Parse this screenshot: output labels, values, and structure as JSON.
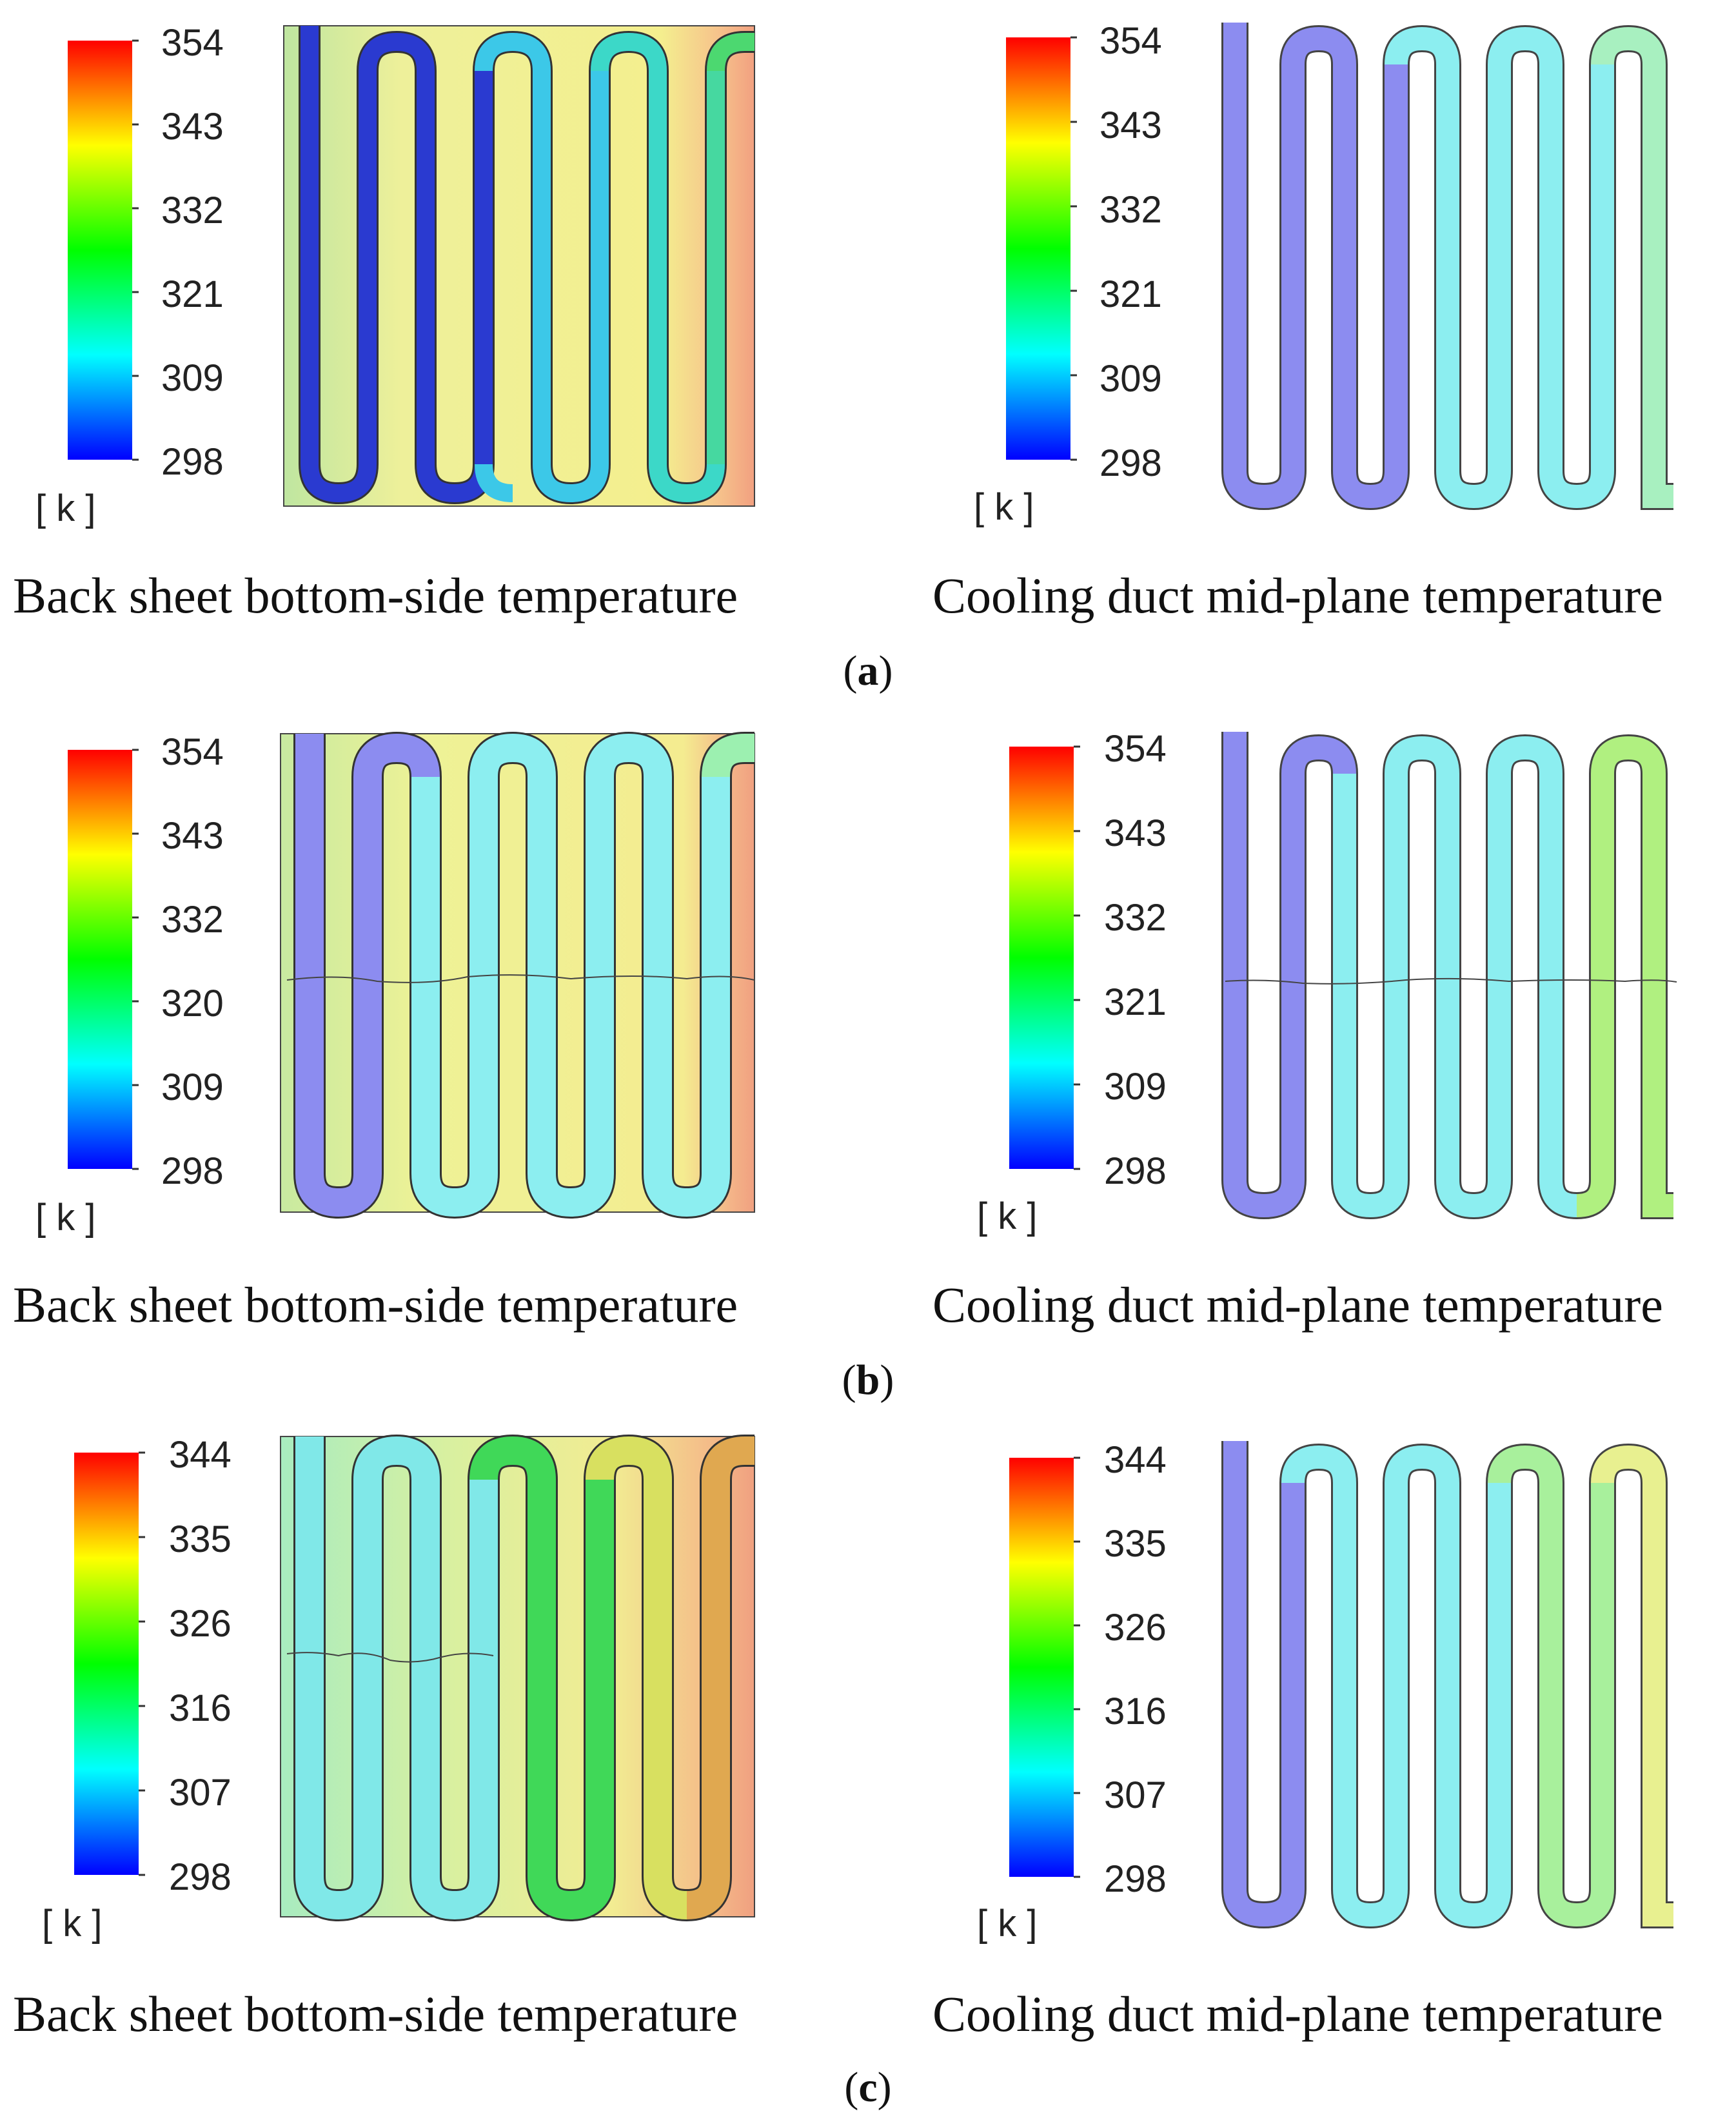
{
  "panels": [
    {
      "label": "a",
      "back_sheet": {
        "caption": "Back sheet bottom-side temperature",
        "scale": [
          "354",
          "343",
          "332",
          "321",
          "309",
          "298"
        ],
        "unit": "[ k ]"
      },
      "cooling_duct": {
        "caption": "Cooling duct mid-plane temperature",
        "scale": [
          "354",
          "343",
          "332",
          "321",
          "309",
          "298"
        ],
        "unit": "[ k ]"
      }
    },
    {
      "label": "b",
      "back_sheet": {
        "caption": "Back sheet bottom-side temperature",
        "scale": [
          "354",
          "343",
          "332",
          "320",
          "309",
          "298"
        ],
        "unit": "[ k ]"
      },
      "cooling_duct": {
        "caption": "Cooling duct mid-plane temperature",
        "scale": [
          "354",
          "343",
          "332",
          "321",
          "309",
          "298"
        ],
        "unit": "[ k ]"
      }
    },
    {
      "label": "c",
      "back_sheet": {
        "caption": "Back sheet bottom-side temperature",
        "scale": [
          "344",
          "335",
          "326",
          "316",
          "307",
          "298"
        ],
        "unit": "[ k ]"
      },
      "cooling_duct": {
        "caption": "Cooling duct mid-plane temperature",
        "scale": [
          "344",
          "335",
          "326",
          "316",
          "307",
          "298"
        ],
        "unit": "[ k ]"
      }
    }
  ],
  "colors": {
    "colormap": [
      "#0000ff",
      "#00ffff",
      "#00ff00",
      "#ffff00",
      "#ff0000"
    ],
    "duct_blue": "#8c8cf0",
    "duct_cyan": "#8ceef0",
    "duct_green": "#9cf08c",
    "sheet_yellow": "#f2f08c",
    "sheet_red": "#f4a080"
  }
}
